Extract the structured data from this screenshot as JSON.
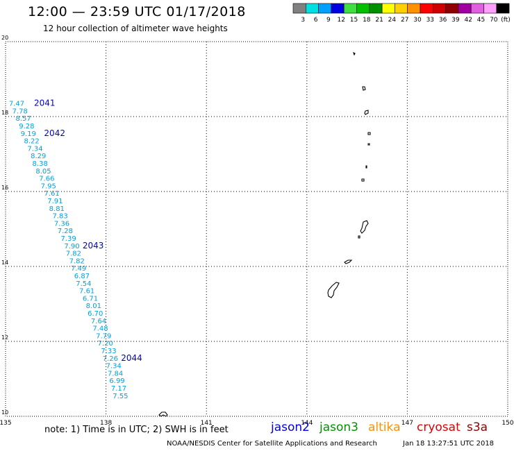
{
  "header": {
    "title": "12:00 — 23:59 UTC 01/17/2018",
    "subtitle": "12 hour collection of altimeter wave heights"
  },
  "colorbar": {
    "unit": "(ft)",
    "bins": [
      {
        "label": "3",
        "color": "#808080"
      },
      {
        "label": "6",
        "color": "#00e0e0"
      },
      {
        "label": "9",
        "color": "#00a0ff"
      },
      {
        "label": "12",
        "color": "#0000e0"
      },
      {
        "label": "15",
        "color": "#40e040"
      },
      {
        "label": "18",
        "color": "#00c000"
      },
      {
        "label": "21",
        "color": "#009000"
      },
      {
        "label": "24",
        "color": "#ffff00"
      },
      {
        "label": "27",
        "color": "#ffd000"
      },
      {
        "label": "30",
        "color": "#ff9000"
      },
      {
        "label": "33",
        "color": "#ff0000"
      },
      {
        "label": "36",
        "color": "#d00000"
      },
      {
        "label": "39",
        "color": "#900000"
      },
      {
        "label": "42",
        "color": "#a000a0"
      },
      {
        "label": "45",
        "color": "#e060e0"
      },
      {
        "label": "70",
        "color": "#ffa0ff"
      },
      {
        "label": "",
        "color": "#000000"
      }
    ]
  },
  "axes": {
    "lon_ticks": [
      "135",
      "138",
      "141",
      "144",
      "147",
      "150"
    ],
    "lat_ticks": [
      "20",
      "18",
      "16",
      "14",
      "12",
      "10"
    ]
  },
  "track": {
    "color": "#00a0e0",
    "pass_label_color": "#0000d0",
    "points": [
      {
        "lon": 135.1,
        "lat": 18.36,
        "v": "7.47"
      },
      {
        "lon": 135.2,
        "lat": 18.16,
        "v": "7.78"
      },
      {
        "lon": 135.3,
        "lat": 17.96,
        "v": "8.57"
      },
      {
        "lon": 135.4,
        "lat": 17.76,
        "v": "9.28"
      },
      {
        "lon": 135.45,
        "lat": 17.56,
        "v": "9.19"
      },
      {
        "lon": 135.55,
        "lat": 17.36,
        "v": "8.22"
      },
      {
        "lon": 135.65,
        "lat": 17.16,
        "v": "7.34"
      },
      {
        "lon": 135.75,
        "lat": 16.96,
        "v": "8.29"
      },
      {
        "lon": 135.8,
        "lat": 16.76,
        "v": "8.38"
      },
      {
        "lon": 135.9,
        "lat": 16.56,
        "v": "8.05"
      },
      {
        "lon": 136.0,
        "lat": 16.36,
        "v": "7.66"
      },
      {
        "lon": 136.05,
        "lat": 16.16,
        "v": "7.95"
      },
      {
        "lon": 136.15,
        "lat": 15.96,
        "v": "7.61"
      },
      {
        "lon": 136.25,
        "lat": 15.76,
        "v": "7.91"
      },
      {
        "lon": 136.3,
        "lat": 15.56,
        "v": "8.81"
      },
      {
        "lon": 136.4,
        "lat": 15.36,
        "v": "7.83"
      },
      {
        "lon": 136.45,
        "lat": 15.16,
        "v": "7.36"
      },
      {
        "lon": 136.55,
        "lat": 14.96,
        "v": "7.28"
      },
      {
        "lon": 136.65,
        "lat": 14.76,
        "v": "7.39"
      },
      {
        "lon": 136.75,
        "lat": 14.56,
        "v": "7.90"
      },
      {
        "lon": 136.8,
        "lat": 14.36,
        "v": "7.82"
      },
      {
        "lon": 136.9,
        "lat": 14.16,
        "v": "7.82"
      },
      {
        "lon": 136.95,
        "lat": 13.96,
        "v": "7.49"
      },
      {
        "lon": 137.05,
        "lat": 13.76,
        "v": "6.87"
      },
      {
        "lon": 137.1,
        "lat": 13.56,
        "v": "7.54"
      },
      {
        "lon": 137.2,
        "lat": 13.36,
        "v": "7.61"
      },
      {
        "lon": 137.3,
        "lat": 13.16,
        "v": "6.71"
      },
      {
        "lon": 137.4,
        "lat": 12.96,
        "v": "8.01"
      },
      {
        "lon": 137.45,
        "lat": 12.76,
        "v": "6.70"
      },
      {
        "lon": 137.55,
        "lat": 12.56,
        "v": "7.64"
      },
      {
        "lon": 137.6,
        "lat": 12.36,
        "v": "7.48"
      },
      {
        "lon": 137.7,
        "lat": 12.16,
        "v": "7.79"
      },
      {
        "lon": 137.75,
        "lat": 11.96,
        "v": "7.20"
      },
      {
        "lon": 137.85,
        "lat": 11.76,
        "v": "7.33"
      },
      {
        "lon": 137.9,
        "lat": 11.56,
        "v": "7.26"
      },
      {
        "lon": 138.0,
        "lat": 11.36,
        "v": "7.34"
      },
      {
        "lon": 138.05,
        "lat": 11.16,
        "v": "7.84"
      },
      {
        "lon": 138.1,
        "lat": 10.96,
        "v": "6.99"
      },
      {
        "lon": 138.15,
        "lat": 10.76,
        "v": "7.17"
      },
      {
        "lon": 138.2,
        "lat": 10.56,
        "v": "7.55"
      }
    ],
    "passes": [
      {
        "lon": 135.85,
        "lat": 18.36,
        "label": "2041"
      },
      {
        "lon": 136.15,
        "lat": 17.56,
        "label": "2042"
      },
      {
        "lon": 137.3,
        "lat": 14.56,
        "label": "2043"
      },
      {
        "lon": 138.45,
        "lat": 11.56,
        "label": "2044"
      }
    ]
  },
  "footer": {
    "note": "note:  1) Time is in UTC;  2) SWH is in feet",
    "satellites": [
      {
        "name": "jason2",
        "color": "#0000e0"
      },
      {
        "name": "jason3",
        "color": "#009000"
      },
      {
        "name": "altika",
        "color": "#ff9000"
      },
      {
        "name": "cryosat",
        "color": "#e00000"
      },
      {
        "name": "s3a",
        "color": "#900000"
      }
    ],
    "credit": "NOAA/NESDIS Center for Satellite Applications and Research",
    "timestamp": "Jan 18 13:27:51 UTC 2018"
  }
}
